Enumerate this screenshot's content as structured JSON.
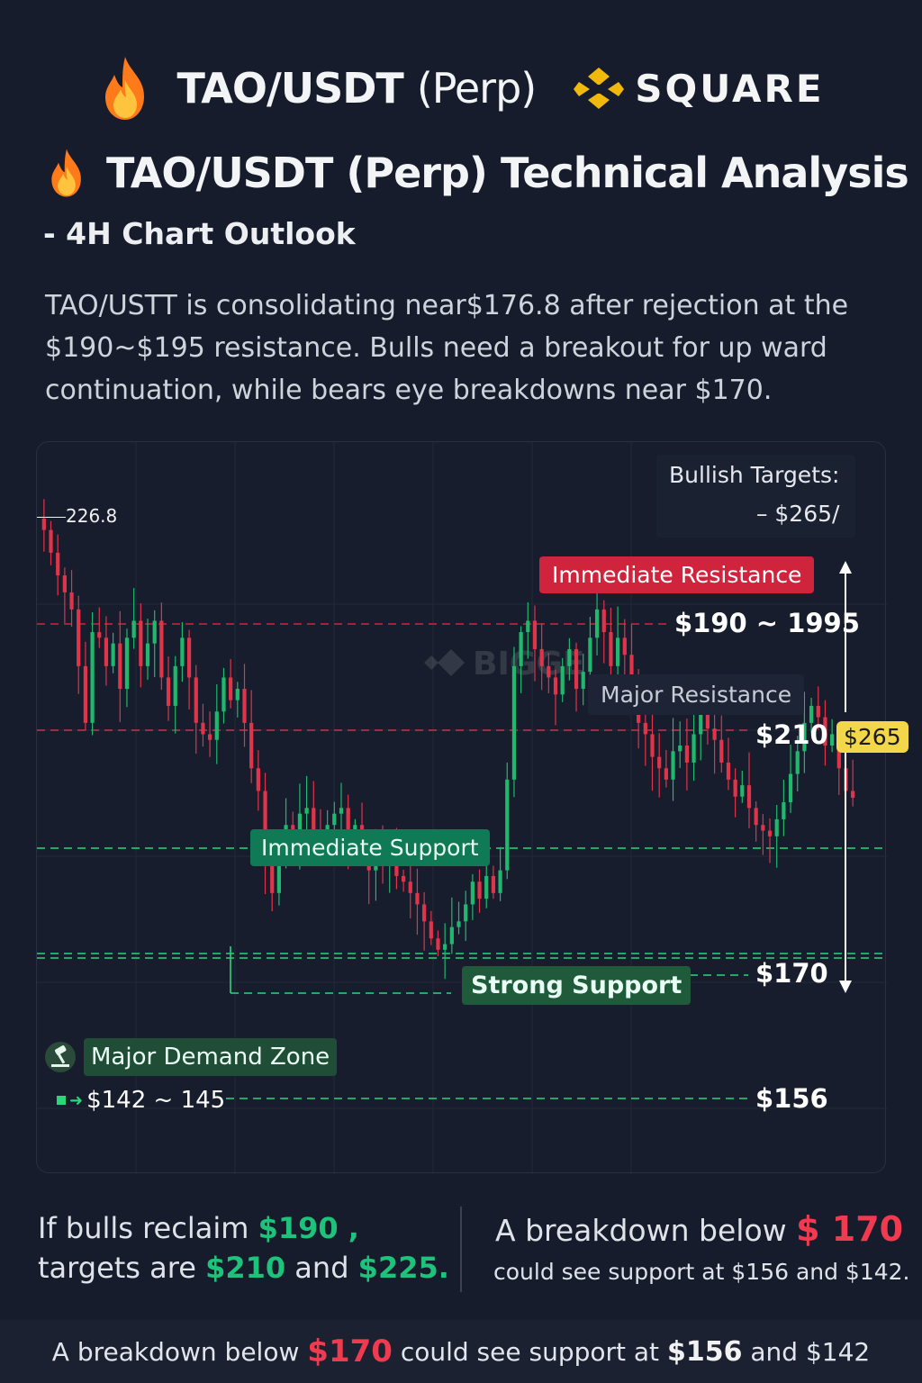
{
  "header": {
    "pair": "TAO/USDT",
    "perp": "(Perp)",
    "brand": "SQUARE",
    "flame_icon": "flame-icon",
    "brand_icon": "binance-square-icon"
  },
  "title": "TAO/USDT (Perp) Technical Analysis",
  "subtitle": "- 4H Chart Outlook",
  "intro": "TAO/USTT is consolidating near$176.8 after rejection at the $190~$195 resistance. Bulls need a breakout for up ward continuation, while bears eye breakdowns near $170.",
  "chart_data": {
    "type": "candlestick",
    "timeframe": "4H",
    "watermark": "BIGGE",
    "price_label_top": "226.8",
    "bullish_targets": {
      "title": "Bullish Targets:",
      "value": "– $265/"
    },
    "levels": [
      {
        "label": "Immediate Resistance",
        "price_text": "$190 ~ 1995",
        "color": "#d0243d"
      },
      {
        "label": "Major Resistance",
        "price_text": "$210",
        "tag": "$265",
        "color": "#c0374b"
      },
      {
        "label": "Immediate Support",
        "price_text": "",
        "color": "#2dd47a"
      },
      {
        "label": "Strong Support",
        "price_text": "$170",
        "color": "#2dd47a"
      },
      {
        "label": "Major Demand Zone",
        "price_text": "$142 ~ 145",
        "right_text": "$156",
        "color": "#2dd47a"
      }
    ],
    "colors": {
      "up": "#1fb86d",
      "down": "#e0344a"
    },
    "close_series": [
      224,
      220,
      216,
      213,
      210,
      200,
      190,
      206,
      205,
      200,
      204,
      196,
      205,
      208,
      200,
      204,
      208,
      198,
      193,
      200,
      205,
      198,
      190,
      188,
      187,
      192,
      198,
      194,
      196,
      190,
      182,
      178,
      165,
      160,
      166,
      172,
      170,
      174,
      175,
      171,
      168,
      172,
      174,
      175,
      170,
      172,
      168,
      164,
      168,
      165,
      166,
      163,
      162,
      160,
      158,
      155,
      152,
      150,
      151,
      154,
      155,
      158,
      162,
      159,
      163,
      160,
      164,
      180,
      200,
      206,
      208,
      203,
      200,
      198,
      195,
      200,
      203,
      196,
      199,
      205,
      210,
      206,
      200,
      205,
      202,
      196,
      190,
      188,
      184,
      182,
      180,
      185,
      186,
      183,
      188,
      192,
      189,
      187,
      183,
      180,
      177,
      179,
      175,
      172,
      171,
      170,
      173,
      176,
      181,
      185,
      190,
      193,
      191,
      186,
      188,
      182,
      178,
      176.8
    ]
  },
  "bottom": {
    "left_line1_pre": "If bulls reclaim",
    "left_line1_value": "$190 ,",
    "left_line2_pre": "targets are",
    "left_line2_v1": "$210",
    "left_line2_mid": "and",
    "left_line2_v2": "$225.",
    "right_line1_pre": "A breakdown below",
    "right_line1_value": "$ 170",
    "right_line2": "could see support at $156 and $142."
  },
  "footer": {
    "pre": "A breakdown below",
    "value": "$170",
    "mid": "could see support at",
    "v1": "$156",
    "post": "and $142"
  }
}
